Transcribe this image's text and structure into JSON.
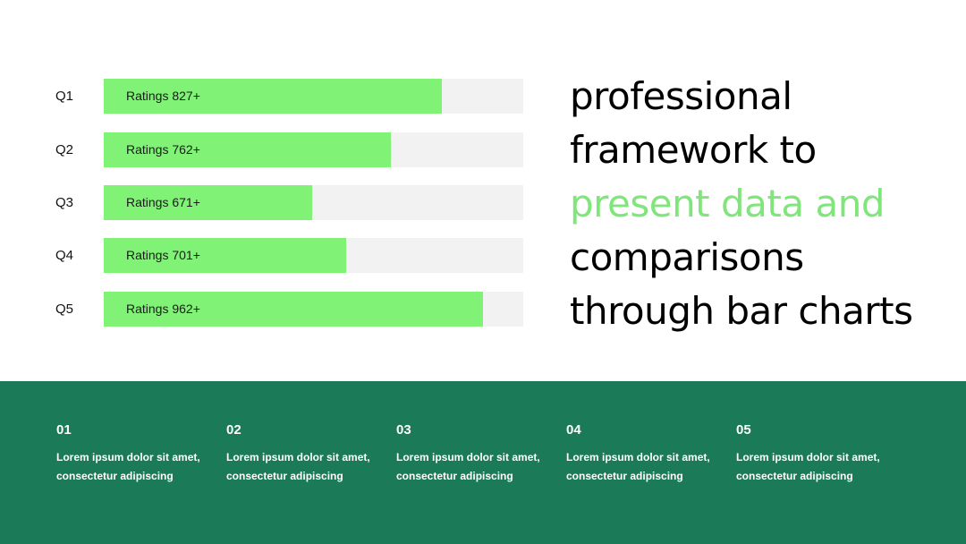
{
  "colors": {
    "bar_fill": "#80f276",
    "bar_track": "#f2f2f2",
    "highlight_text": "#80e57a",
    "footer_bg": "#1b7a57",
    "headline_text": "#000000"
  },
  "chart_data": {
    "type": "bar",
    "orientation": "horizontal",
    "categories": [
      "Q1",
      "Q2",
      "Q3",
      "Q4",
      "Q5"
    ],
    "values": [
      827,
      762,
      671,
      701,
      962
    ],
    "fill_fraction": [
      0.806,
      0.684,
      0.497,
      0.578,
      0.904
    ],
    "data_labels": [
      "Ratings 827+",
      "Ratings 762+",
      "Ratings 671+",
      "Ratings 701+",
      "Ratings 962+"
    ],
    "grid": false,
    "legend": "none"
  },
  "headline": {
    "line1": "professional",
    "line2": "framework to",
    "line3": "present data and",
    "line4": "comparisons",
    "line5": "through bar charts"
  },
  "footer": {
    "items": [
      {
        "num": "01",
        "text": "Lorem ipsum dolor sit amet, consectetur adipiscing"
      },
      {
        "num": "02",
        "text": "Lorem ipsum dolor sit amet, consectetur adipiscing"
      },
      {
        "num": "03",
        "text": "Lorem ipsum dolor sit amet, consectetur adipiscing"
      },
      {
        "num": "04",
        "text": "Lorem ipsum dolor sit amet, consectetur adipiscing"
      },
      {
        "num": "05",
        "text": "Lorem ipsum dolor sit amet, consectetur adipiscing"
      }
    ]
  }
}
